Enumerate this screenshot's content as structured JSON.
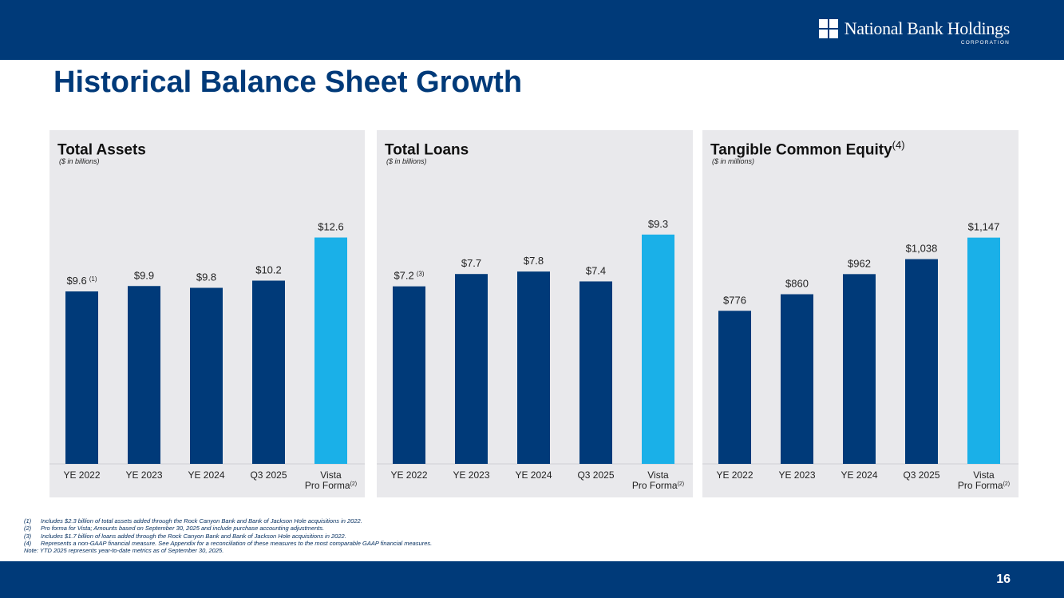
{
  "header": {
    "logo_text": "National Bank Holdings",
    "logo_subtext": "CORPORATION"
  },
  "page_title": "Historical Balance Sheet Growth",
  "colors": {
    "dark_blue": "#003a79",
    "light_blue": "#1ab0e8",
    "panel_bg": "#e9e9ec"
  },
  "chart_data": [
    {
      "type": "bar",
      "title": "Total Assets",
      "title_sup": "",
      "subtitle": "($ in billions)",
      "categories": [
        "YE 2022",
        "YE 2023",
        "YE 2024",
        "Q3 2025",
        "Vista Pro Forma"
      ],
      "category_sup": [
        "",
        "",
        "",
        "",
        "(2)"
      ],
      "values": [
        9.6,
        9.9,
        9.8,
        10.2,
        12.6
      ],
      "value_labels": [
        "$9.6",
        "$9.9",
        "$9.8",
        "$10.2",
        "$12.6"
      ],
      "label_sup": [
        "(1)",
        "",
        "",
        "",
        ""
      ],
      "highlight": [
        false,
        false,
        false,
        false,
        true
      ],
      "ylim": [
        0,
        14
      ]
    },
    {
      "type": "bar",
      "title": "Total Loans",
      "title_sup": "",
      "subtitle": "($ in billions)",
      "categories": [
        "YE 2022",
        "YE 2023",
        "YE 2024",
        "Q3 2025",
        "Vista Pro Forma"
      ],
      "category_sup": [
        "",
        "",
        "",
        "",
        "(2)"
      ],
      "values": [
        7.2,
        7.7,
        7.8,
        7.4,
        9.3
      ],
      "value_labels": [
        "$7.2",
        "$7.7",
        "$7.8",
        "$7.4",
        "$9.3"
      ],
      "label_sup": [
        "(3)",
        "",
        "",
        "",
        ""
      ],
      "highlight": [
        false,
        false,
        false,
        false,
        true
      ],
      "ylim": [
        0,
        10.2
      ]
    },
    {
      "type": "bar",
      "title": "Tangible Common Equity",
      "title_sup": "(4)",
      "subtitle": "($ in millions)",
      "categories": [
        "YE 2022",
        "YE 2023",
        "YE 2024",
        "Q3 2025",
        "Vista Pro Forma"
      ],
      "category_sup": [
        "",
        "",
        "",
        "",
        "(2)"
      ],
      "values": [
        776,
        860,
        962,
        1038,
        1147
      ],
      "value_labels": [
        "$776",
        "$860",
        "$962",
        "$1,038",
        "$1,147"
      ],
      "label_sup": [
        "",
        "",
        "",
        "",
        ""
      ],
      "highlight": [
        false,
        false,
        false,
        false,
        true
      ],
      "ylim": [
        0,
        1275
      ]
    }
  ],
  "footnotes": [
    {
      "num": "(1)",
      "text": "Includes $2.3 billion of total assets added through the Rock Canyon Bank and Bank of Jackson Hole acquisitions in 2022."
    },
    {
      "num": "(2)",
      "text": "Pro forma for Vista; Amounts based on September 30, 2025 and include purchase accounting adjustments."
    },
    {
      "num": "(3)",
      "text": "Includes $1.7 billion of loans added through the Rock Canyon Bank and Bank of Jackson Hole acquisitions in 2022."
    },
    {
      "num": "(4)",
      "text": "Represents a non-GAAP financial measure.  See Appendix for a reconciliation of these measures to the most comparable GAAP financial measures."
    }
  ],
  "note": "Note: YTD 2025 represents year-to-date metrics as of September 30, 2025.",
  "page_number": "16"
}
